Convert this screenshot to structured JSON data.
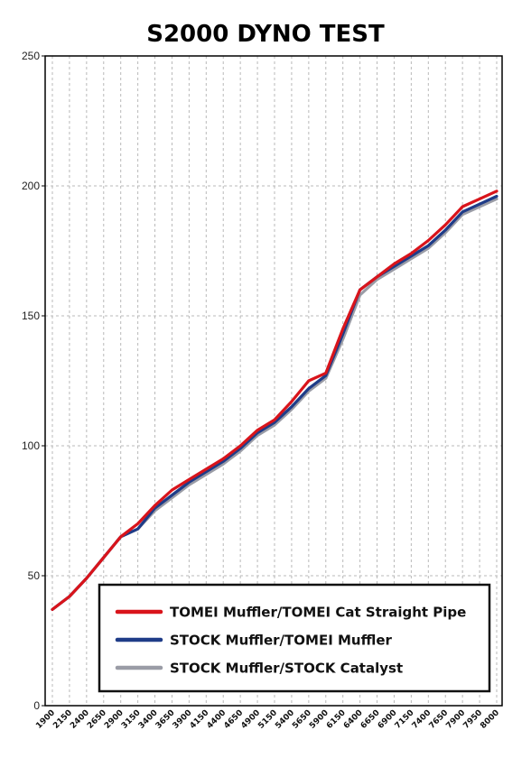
{
  "chart_data": {
    "type": "line",
    "title": "S2000  DYNO TEST",
    "xlabel": "",
    "ylabel": "",
    "ylim": [
      0,
      250
    ],
    "yticks": [
      0,
      50,
      100,
      150,
      200,
      250
    ],
    "grid": true,
    "legend_position": "bottom-right",
    "categories": [
      "1900",
      "2150",
      "2400",
      "2650",
      "2900",
      "3150",
      "3400",
      "3650",
      "3900",
      "4150",
      "4400",
      "4650",
      "4900",
      "5150",
      "5400",
      "5650",
      "5900",
      "6150",
      "6400",
      "6650",
      "6900",
      "7150",
      "7400",
      "7650",
      "7900",
      "7950",
      "8000"
    ],
    "series": [
      {
        "name": "TOMEI Muffler/TOMEI Cat Straight Pipe",
        "color": "#d9141b",
        "values": [
          37,
          42,
          49,
          57,
          65,
          70,
          77,
          83,
          87,
          91,
          95,
          100,
          106,
          110,
          117,
          125,
          128,
          145,
          160,
          165,
          170,
          174,
          179,
          185,
          192,
          195,
          198
        ]
      },
      {
        "name": "STOCK Muffler/TOMEI Muffler",
        "color": "#1f3c88",
        "values": [
          37,
          42,
          49,
          57,
          65,
          68,
          76,
          81,
          86,
          90,
          94,
          99,
          105,
          109,
          115,
          122,
          127,
          143,
          160,
          165,
          169,
          173,
          177,
          183,
          190,
          193,
          196
        ]
      },
      {
        "name": "STOCK Muffler/STOCK Catalyst",
        "color": "#9a9ca6",
        "values": [
          37,
          42,
          49,
          57,
          65,
          68,
          75,
          80,
          85,
          89,
          93,
          98,
          104,
          108,
          114,
          121,
          126,
          141,
          158,
          164,
          168,
          172,
          176,
          182,
          189,
          192,
          195
        ]
      }
    ]
  }
}
